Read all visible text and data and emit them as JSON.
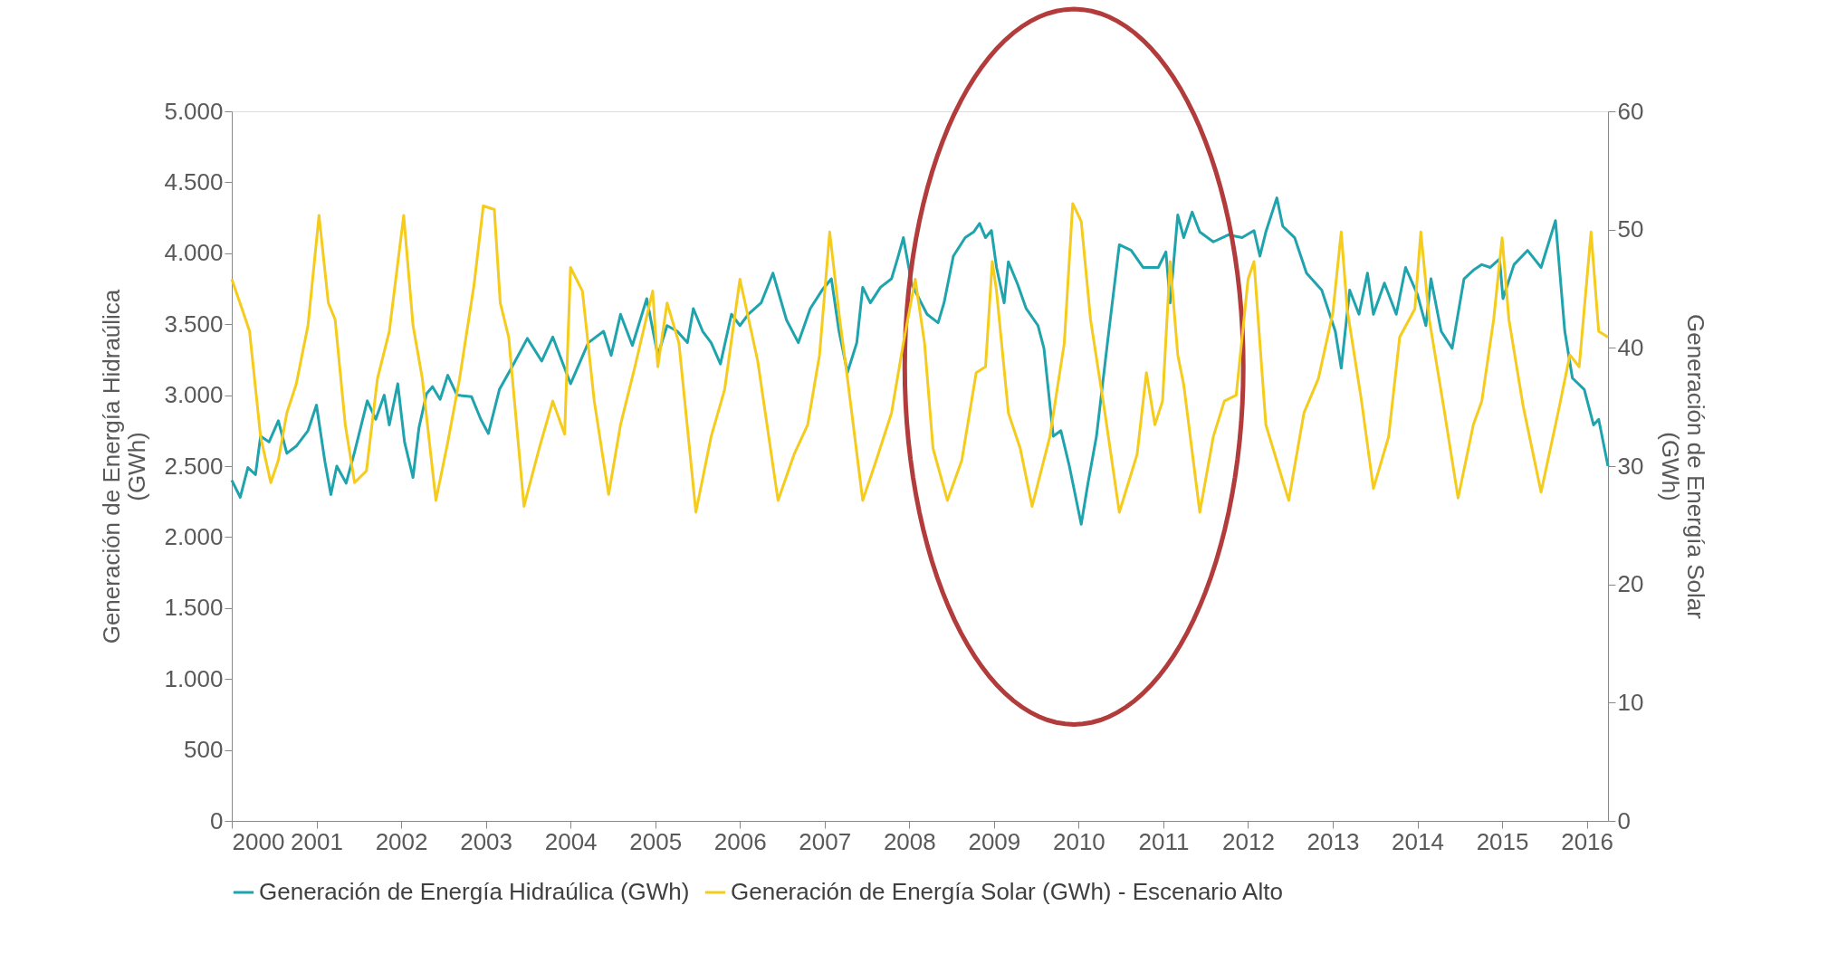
{
  "chart_data": {
    "type": "line",
    "xlabel": null,
    "ylabel": "Generación de Energía Hidraúlica (GWh)",
    "y2label": "Generación de Energía Solar (GWh)",
    "xlim": [
      2000,
      2016.25
    ],
    "xticks": [
      2000,
      2001,
      2002,
      2003,
      2004,
      2005,
      2006,
      2007,
      2008,
      2009,
      2010,
      2011,
      2012,
      2013,
      2014,
      2015,
      2016
    ],
    "ylim": [
      0,
      5000
    ],
    "yticks": [
      0,
      500,
      {
        "value": 1000,
        "label": "1.000"
      },
      {
        "value": 1500,
        "label": "1.500"
      },
      {
        "value": 2000,
        "label": "2.000"
      },
      {
        "value": 2500,
        "label": "2.500"
      },
      {
        "value": 3000,
        "label": "3.000"
      },
      {
        "value": 3500,
        "label": "3.500"
      },
      {
        "value": 4000,
        "label": "4.000"
      },
      {
        "value": 4500,
        "label": "4.500"
      },
      {
        "value": 5000,
        "label": "5.000"
      }
    ],
    "y2lim": [
      0,
      60
    ],
    "y2ticks": [
      0,
      10,
      20,
      30,
      40,
      50,
      60
    ],
    "grid": false,
    "legend": "bottom",
    "marker": "none",
    "line_style": "solid",
    "series": [
      {
        "name": "Generación de Energía Hidraúlica (GWh)",
        "color": "#1fa3ad",
        "x": [
          2000.0,
          2000.1,
          2000.19,
          2000.28,
          2000.34,
          2000.44,
          2000.55,
          2000.65,
          2000.76,
          2000.9,
          2001.0,
          2001.1,
          2001.17,
          2001.24,
          2001.35,
          2001.45,
          2001.6,
          2001.7,
          2001.8,
          2001.86,
          2001.96,
          2002.04,
          2002.14,
          2002.21,
          2002.3,
          2002.37,
          2002.46,
          2002.55,
          2002.66,
          2002.83,
          2002.94,
          2003.03,
          2003.16,
          2003.31,
          2003.49,
          2003.66,
          2003.79,
          2004.0,
          2004.21,
          2004.39,
          2004.48,
          2004.59,
          2004.73,
          2004.9,
          2005.03,
          2005.14,
          2005.26,
          2005.38,
          2005.45,
          2005.56,
          2005.66,
          2005.77,
          2005.9,
          2006.0,
          2006.1,
          2006.25,
          2006.39,
          2006.55,
          2006.69,
          2006.83,
          2006.97,
          2007.08,
          2007.17,
          2007.27,
          2007.38,
          2007.45,
          2007.54,
          2007.66,
          2007.79,
          2007.86,
          2007.93,
          2008.03,
          2008.21,
          2008.34,
          2008.41,
          2008.52,
          2008.66,
          2008.76,
          2008.83,
          2008.9,
          2008.97,
          2009.03,
          2009.12,
          2009.17,
          2009.28,
          2009.38,
          2009.52,
          2009.59,
          2009.7,
          2009.79,
          2009.89,
          2010.03,
          2010.11,
          2010.21,
          2010.34,
          2010.48,
          2010.62,
          2010.76,
          2010.94,
          2011.03,
          2011.08,
          2011.17,
          2011.24,
          2011.34,
          2011.43,
          2011.59,
          2011.77,
          2011.93,
          2012.07,
          2012.14,
          2012.21,
          2012.34,
          2012.41,
          2012.55,
          2012.69,
          2012.87,
          2013.03,
          2013.1,
          2013.2,
          2013.31,
          2013.41,
          2013.48,
          2013.61,
          2013.75,
          2013.86,
          2014.0,
          2014.1,
          2014.16,
          2014.28,
          2014.41,
          2014.55,
          2014.66,
          2014.76,
          2014.86,
          2014.97,
          2015.01,
          2015.14,
          2015.3,
          2015.46,
          2015.63,
          2015.74,
          2015.83,
          2015.97,
          2016.08,
          2016.14,
          2016.25
        ],
        "values": [
          2400,
          2280,
          2490,
          2440,
          2710,
          2670,
          2820,
          2590,
          2640,
          2750,
          2930,
          2530,
          2300,
          2500,
          2380,
          2600,
          2960,
          2830,
          3000,
          2790,
          3080,
          2670,
          2420,
          2770,
          3010,
          3060,
          2970,
          3140,
          3000,
          2990,
          2830,
          2730,
          3040,
          3200,
          3400,
          3240,
          3410,
          3080,
          3370,
          3450,
          3280,
          3570,
          3350,
          3680,
          3280,
          3490,
          3450,
          3370,
          3610,
          3450,
          3370,
          3220,
          3570,
          3490,
          3570,
          3650,
          3860,
          3530,
          3370,
          3610,
          3740,
          3820,
          3450,
          3160,
          3370,
          3760,
          3650,
          3760,
          3820,
          3960,
          4110,
          3780,
          3570,
          3510,
          3650,
          3980,
          4110,
          4150,
          4210,
          4110,
          4160,
          3900,
          3650,
          3940,
          3780,
          3610,
          3490,
          3330,
          2710,
          2750,
          2500,
          2090,
          2380,
          2710,
          3370,
          4060,
          4020,
          3900,
          3900,
          4010,
          3650,
          4270,
          4110,
          4290,
          4150,
          4080,
          4130,
          4110,
          4160,
          3980,
          4150,
          4390,
          4190,
          4110,
          3860,
          3740,
          3450,
          3190,
          3740,
          3570,
          3860,
          3570,
          3790,
          3570,
          3900,
          3710,
          3490,
          3820,
          3450,
          3330,
          3820,
          3880,
          3920,
          3900,
          3960,
          3680,
          3920,
          4020,
          3900,
          4230,
          3450,
          3120,
          3040,
          2790,
          2830,
          2500
        ]
      },
      {
        "name": "Generación de Energía Solar (GWh) - Escenario Alto",
        "color": "#f5cb1c",
        "axis": "y2",
        "x": [
          2000.0,
          2000.14,
          2000.21,
          2000.34,
          2000.46,
          2000.55,
          2000.65,
          2000.76,
          2000.9,
          2001.03,
          2001.14,
          2001.22,
          2001.34,
          2001.45,
          2001.59,
          2001.72,
          2001.86,
          2002.03,
          2002.14,
          2002.25,
          2002.41,
          2002.55,
          2002.69,
          2002.86,
          2002.97,
          2003.1,
          2003.17,
          2003.27,
          2003.45,
          2003.63,
          2003.79,
          2003.93,
          2004.0,
          2004.14,
          2004.28,
          2004.45,
          2004.59,
          2004.76,
          2004.97,
          2005.03,
          2005.14,
          2005.28,
          2005.48,
          2005.66,
          2005.82,
          2006.0,
          2006.21,
          2006.45,
          2006.64,
          2006.8,
          2006.94,
          2007.06,
          2007.17,
          2007.27,
          2007.45,
          2007.61,
          2007.79,
          2007.93,
          2008.07,
          2008.18,
          2008.28,
          2008.45,
          2008.62,
          2008.79,
          2008.9,
          2008.98,
          2009.03,
          2009.17,
          2009.31,
          2009.45,
          2009.66,
          2009.83,
          2009.93,
          2010.03,
          2010.14,
          2010.31,
          2010.48,
          2010.69,
          2010.8,
          2010.9,
          2010.99,
          2011.08,
          2011.17,
          2011.24,
          2011.43,
          2011.59,
          2011.72,
          2011.86,
          2012.0,
          2012.07,
          2012.21,
          2012.48,
          2012.66,
          2012.83,
          2013.0,
          2013.1,
          2013.17,
          2013.34,
          2013.48,
          2013.66,
          2013.79,
          2013.97,
          2014.04,
          2014.14,
          2014.31,
          2014.48,
          2014.66,
          2014.76,
          2014.9,
          2015.0,
          2015.08,
          2015.25,
          2015.46,
          2015.66,
          2015.8,
          2015.91,
          2016.05,
          2016.14,
          2016.25
        ],
        "values": [
          45.8,
          42.9,
          41.4,
          32.5,
          28.6,
          30.5,
          34.5,
          36.9,
          41.9,
          51.2,
          43.8,
          42.4,
          33.5,
          28.6,
          29.6,
          37.4,
          41.4,
          51.2,
          41.9,
          37.4,
          27.1,
          32.0,
          37.4,
          45.3,
          52.0,
          51.7,
          43.8,
          40.9,
          26.6,
          31.5,
          35.5,
          32.7,
          46.8,
          44.8,
          35.5,
          27.6,
          33.5,
          38.4,
          44.8,
          38.4,
          43.8,
          40.4,
          26.1,
          32.5,
          36.5,
          45.8,
          38.9,
          27.1,
          31.0,
          33.5,
          39.4,
          49.8,
          42.9,
          37.4,
          27.1,
          30.5,
          34.5,
          40.4,
          45.8,
          40.4,
          31.5,
          27.1,
          30.5,
          37.9,
          38.4,
          47.3,
          44.8,
          34.5,
          31.5,
          26.6,
          32.5,
          40.4,
          52.2,
          50.7,
          42.4,
          34.5,
          26.1,
          31.0,
          37.9,
          33.5,
          35.5,
          47.3,
          39.4,
          36.9,
          26.1,
          32.5,
          35.5,
          36.0,
          45.8,
          47.3,
          33.5,
          27.1,
          34.5,
          37.4,
          42.9,
          49.8,
          43.3,
          35.5,
          28.1,
          32.5,
          40.9,
          43.3,
          49.8,
          42.4,
          35.0,
          27.3,
          33.5,
          35.5,
          42.4,
          49.3,
          42.4,
          35.0,
          27.8,
          34.5,
          39.4,
          38.4,
          49.8,
          41.4,
          40.9
        ]
      }
    ]
  }
}
